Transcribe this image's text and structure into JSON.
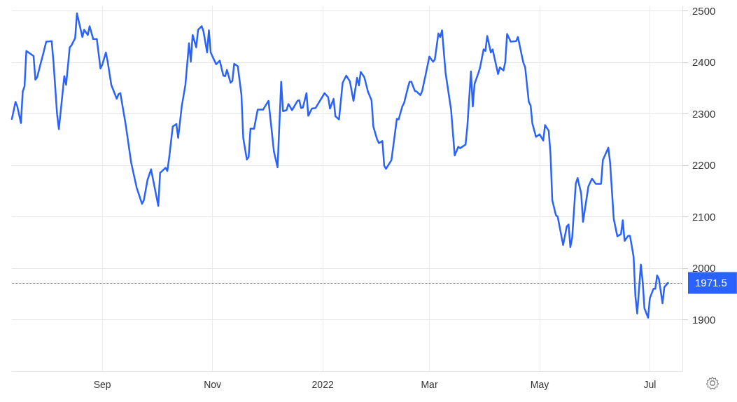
{
  "chart_data": {
    "type": "line",
    "x": [
      "2021-07-13",
      "2021-07-15",
      "2021-07-16",
      "2021-07-18",
      "2021-07-19",
      "2021-07-20",
      "2021-07-21",
      "2021-07-25",
      "2021-07-26",
      "2021-07-27",
      "2021-07-29",
      "2021-07-30",
      "2021-08-01",
      "2021-08-04",
      "2021-08-05",
      "2021-08-07",
      "2021-08-08",
      "2021-08-11",
      "2021-08-12",
      "2021-08-14",
      "2021-08-15",
      "2021-08-17",
      "2021-08-18",
      "2021-08-21",
      "2021-08-22",
      "2021-08-24",
      "2021-08-25",
      "2021-08-27",
      "2021-08-29",
      "2021-08-31",
      "2021-09-01",
      "2021-09-03",
      "2021-09-04",
      "2021-09-06",
      "2021-09-09",
      "2021-09-10",
      "2021-09-11",
      "2021-09-13",
      "2021-09-14",
      "2021-09-17",
      "2021-09-20",
      "2021-09-23",
      "2021-09-24",
      "2021-09-26",
      "2021-09-28",
      "2021-10-02",
      "2021-10-03",
      "2021-10-06",
      "2021-10-07",
      "2021-10-08",
      "2021-10-10",
      "2021-10-12",
      "2021-10-13",
      "2021-10-15",
      "2021-10-17",
      "2021-10-19",
      "2021-10-20",
      "2021-10-21",
      "2021-10-23",
      "2021-10-24",
      "2021-10-26",
      "2021-10-27",
      "2021-10-29",
      "2021-10-30",
      "2021-10-31",
      "2021-11-03",
      "2021-11-05",
      "2021-11-07",
      "2021-11-08",
      "2021-11-09",
      "2021-11-11",
      "2021-11-12",
      "2021-11-13",
      "2021-11-15",
      "2021-11-17",
      "2021-11-18",
      "2021-11-20",
      "2021-11-21",
      "2021-11-22",
      "2021-11-24",
      "2021-11-26",
      "2021-11-29",
      "2021-11-30",
      "2021-12-02",
      "2021-12-05",
      "2021-12-07",
      "2021-12-09",
      "2021-12-10",
      "2021-12-12",
      "2021-12-13",
      "2021-12-15",
      "2021-12-18",
      "2021-12-19",
      "2021-12-20",
      "2021-12-21",
      "2021-12-23",
      "2021-12-24",
      "2021-12-26",
      "2021-12-28",
      "2022-01-02",
      "2022-01-04",
      "2022-01-05",
      "2022-01-07",
      "2022-01-08",
      "2022-01-10",
      "2022-01-12",
      "2022-01-14",
      "2022-01-16",
      "2022-01-18",
      "2022-01-20",
      "2022-01-21",
      "2022-01-22",
      "2022-01-24",
      "2022-01-26",
      "2022-01-28",
      "2022-01-29",
      "2022-01-31",
      "2022-02-01",
      "2022-02-03",
      "2022-02-04",
      "2022-02-05",
      "2022-02-08",
      "2022-02-11",
      "2022-02-12",
      "2022-02-14",
      "2022-02-15",
      "2022-02-17",
      "2022-02-18",
      "2022-02-19",
      "2022-02-21",
      "2022-02-22",
      "2022-02-24",
      "2022-02-25",
      "2022-02-27",
      "2022-03-01",
      "2022-03-03",
      "2022-03-04",
      "2022-03-06",
      "2022-03-07",
      "2022-03-08",
      "2022-03-10",
      "2022-03-13",
      "2022-03-15",
      "2022-03-17",
      "2022-03-18",
      "2022-03-21",
      "2022-03-22",
      "2022-03-24",
      "2022-03-25",
      "2022-03-26",
      "2022-03-28",
      "2022-03-29",
      "2022-03-31",
      "2022-04-01",
      "2022-04-02",
      "2022-04-04",
      "2022-04-05",
      "2022-04-08",
      "2022-04-09",
      "2022-04-11",
      "2022-04-12",
      "2022-04-13",
      "2022-04-15",
      "2022-04-18",
      "2022-04-19",
      "2022-04-21",
      "2022-04-22",
      "2022-04-23",
      "2022-04-25",
      "2022-04-26",
      "2022-04-27",
      "2022-04-29",
      "2022-05-01",
      "2022-05-03",
      "2022-05-04",
      "2022-05-06",
      "2022-05-07",
      "2022-05-08",
      "2022-05-10",
      "2022-05-11",
      "2022-05-14",
      "2022-05-16",
      "2022-05-17",
      "2022-05-18",
      "2022-05-19",
      "2022-05-21",
      "2022-05-22",
      "2022-05-24",
      "2022-05-25",
      "2022-05-28",
      "2022-05-30",
      "2022-06-01",
      "2022-06-04",
      "2022-06-05",
      "2022-06-08",
      "2022-06-09",
      "2022-06-11",
      "2022-06-13",
      "2022-06-15",
      "2022-06-16",
      "2022-06-17",
      "2022-06-19",
      "2022-06-20",
      "2022-06-22",
      "2022-06-23",
      "2022-06-24",
      "2022-06-26",
      "2022-06-27",
      "2022-06-28",
      "2022-06-30",
      "2022-07-01",
      "2022-07-03",
      "2022-07-04",
      "2022-07-05",
      "2022-07-06",
      "2022-07-08",
      "2022-07-09",
      "2022-07-11"
    ],
    "series": [
      {
        "color": "#2962ff",
        "values": [
          2290,
          2323,
          2314,
          2282,
          2343,
          2353,
          2422,
          2412,
          2366,
          2371,
          2399,
          2412,
          2440,
          2441,
          2401,
          2299,
          2270,
          2373,
          2356,
          2429,
          2433,
          2447,
          2495,
          2449,
          2463,
          2453,
          2470,
          2445,
          2445,
          2388,
          2395,
          2419,
          2401,
          2356,
          2329,
          2338,
          2340,
          2299,
          2278,
          2205,
          2157,
          2125,
          2132,
          2171,
          2192,
          2121,
          2185,
          2195,
          2189,
          2214,
          2275,
          2280,
          2253,
          2315,
          2356,
          2437,
          2401,
          2453,
          2429,
          2463,
          2470,
          2460,
          2419,
          2462,
          2419,
          2396,
          2403,
          2374,
          2373,
          2385,
          2360,
          2364,
          2397,
          2392,
          2337,
          2253,
          2211,
          2216,
          2271,
          2271,
          2308,
          2308,
          2314,
          2325,
          2226,
          2196,
          2362,
          2305,
          2307,
          2319,
          2307,
          2325,
          2326,
          2311,
          2312,
          2340,
          2296,
          2310,
          2311,
          2340,
          2332,
          2310,
          2329,
          2295,
          2289,
          2360,
          2374,
          2363,
          2325,
          2370,
          2355,
          2381,
          2371,
          2343,
          2326,
          2275,
          2251,
          2243,
          2247,
          2199,
          2193,
          2210,
          2290,
          2289,
          2314,
          2321,
          2349,
          2362,
          2362,
          2344,
          2343,
          2336,
          2344,
          2377,
          2411,
          2401,
          2405,
          2456,
          2449,
          2462,
          2378,
          2308,
          2219,
          2236,
          2233,
          2240,
          2275,
          2382,
          2314,
          2358,
          2378,
          2389,
          2425,
          2422,
          2451,
          2419,
          2425,
          2377,
          2390,
          2384,
          2401,
          2455,
          2440,
          2441,
          2449,
          2415,
          2399,
          2390,
          2323,
          2316,
          2281,
          2255,
          2260,
          2248,
          2278,
          2267,
          2223,
          2132,
          2103,
          2100,
          2045,
          2081,
          2085,
          2041,
          2059,
          2164,
          2175,
          2145,
          2090,
          2159,
          2174,
          2164,
          2164,
          2210,
          2234,
          2205,
          2096,
          2062,
          2066,
          2093,
          2053,
          2063,
          2063,
          2022,
          1945,
          1912,
          2007,
          1974,
          1922,
          1904,
          1942,
          1960,
          1960,
          1986,
          1979,
          1932,
          1963,
          1971.5
        ]
      }
    ],
    "xlim": [
      "2021-07-13",
      "2022-07-19"
    ],
    "xticks": [
      {
        "value": "2021-09-01",
        "label": "Sep"
      },
      {
        "value": "2021-11-01",
        "label": "Nov"
      },
      {
        "value": "2022-01-01",
        "label": "2022"
      },
      {
        "value": "2022-03-01",
        "label": "Mar"
      },
      {
        "value": "2022-05-01",
        "label": "May"
      },
      {
        "value": "2022-07-01",
        "label": "Jul"
      }
    ],
    "ylim": [
      1800,
      2510
    ],
    "yticks": [
      1900,
      2000,
      2100,
      2200,
      2300,
      2400,
      2500
    ],
    "ref_lines": [
      {
        "axis": "y",
        "value": 1971.5,
        "label": "1971.5",
        "color": "#2962ff",
        "line_style": "dotted"
      }
    ],
    "grid": true,
    "marker": "none",
    "line_style": "solid"
  }
}
